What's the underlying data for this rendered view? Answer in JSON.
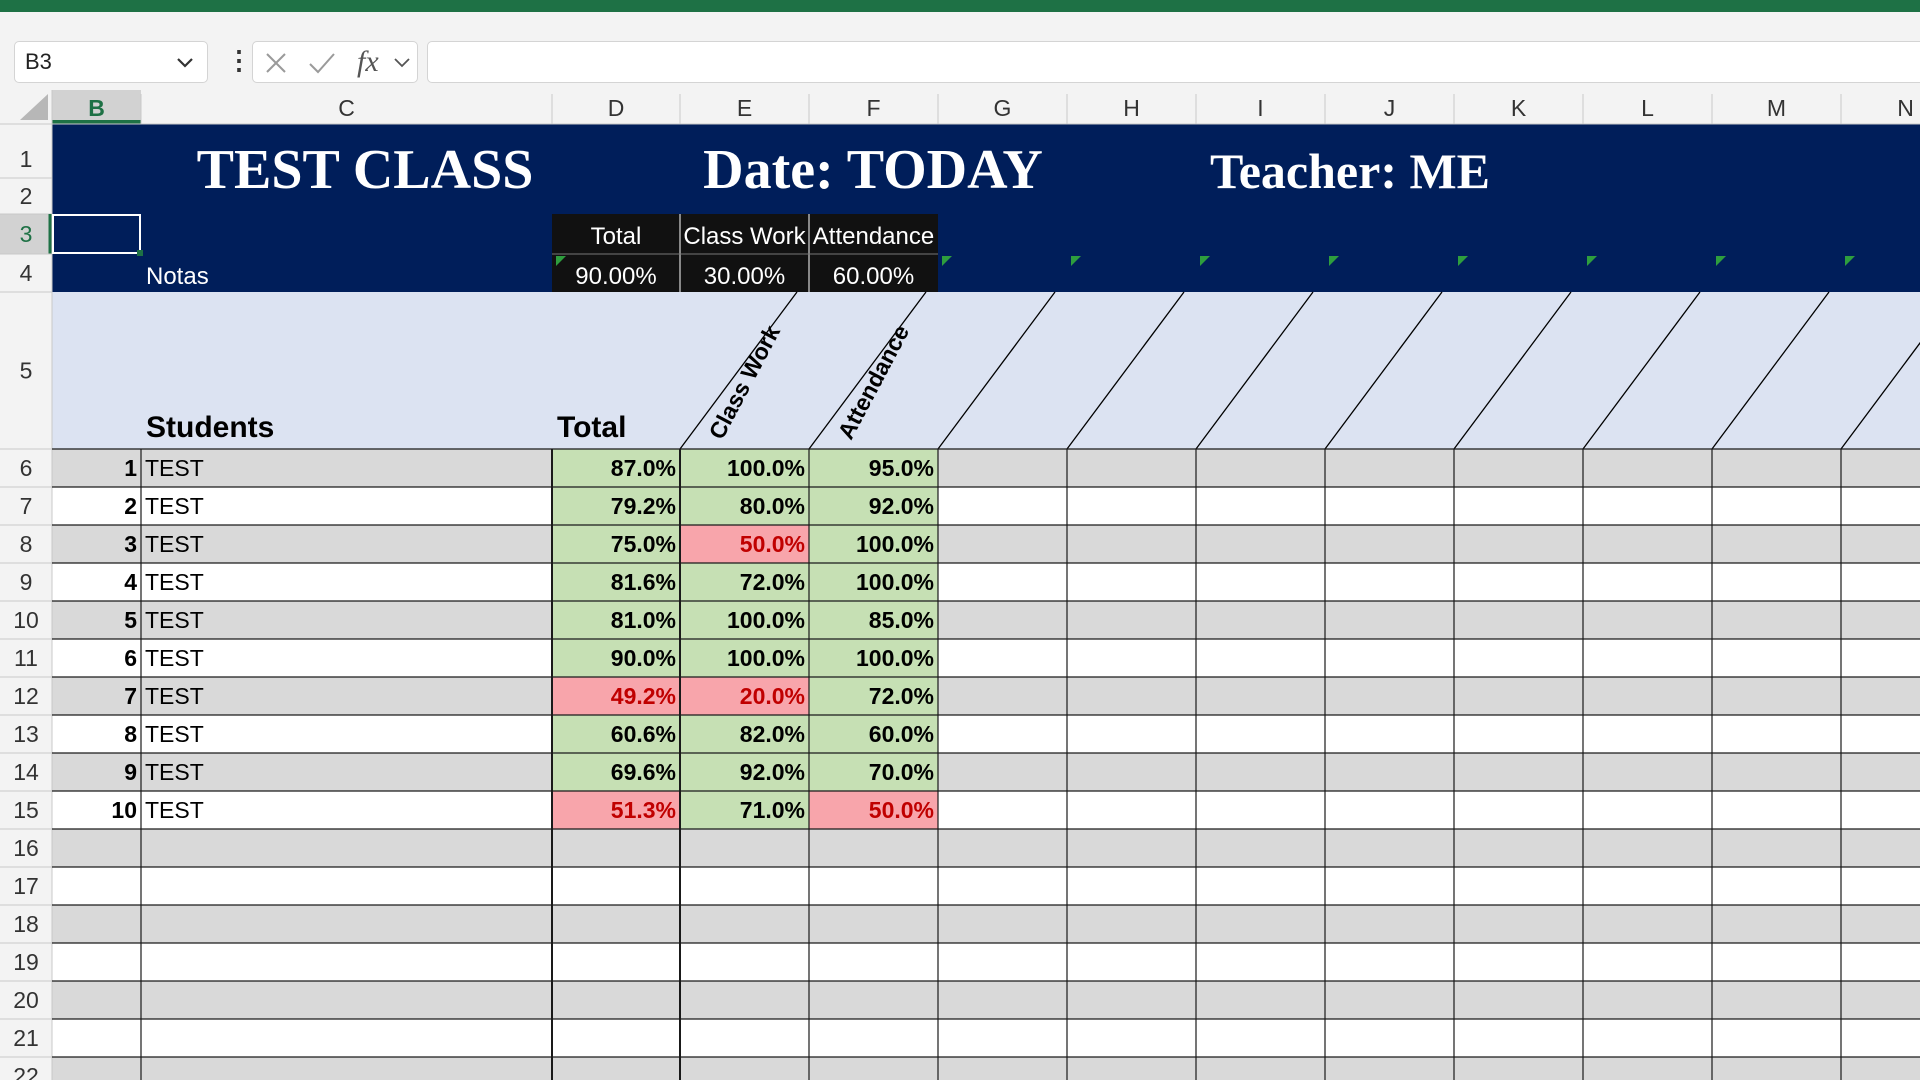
{
  "formula_bar": {
    "name_box": "B3",
    "fx": "fx",
    "formula": ""
  },
  "columns": [
    "B",
    "C",
    "D",
    "E",
    "F",
    "G",
    "H",
    "I",
    "J",
    "K",
    "L",
    "M",
    "N"
  ],
  "rows": [
    "1",
    "2",
    "3",
    "4",
    "5",
    "6",
    "7",
    "8",
    "9",
    "10",
    "11",
    "12",
    "13",
    "14",
    "15",
    "16",
    "17",
    "18",
    "19",
    "20",
    "21",
    "22"
  ],
  "header": {
    "title": "TEST CLASS",
    "date": "Date: TODAY",
    "teacher": "Teacher: ME"
  },
  "weights": {
    "labels": [
      "Total",
      "Class Work",
      "Attendance"
    ],
    "values": [
      "90.00%",
      "30.00%",
      "60.00%"
    ],
    "notas": "Notas"
  },
  "table_header": {
    "students": "Students",
    "total": "Total",
    "class_work": "Class Work",
    "attendance": "Attendance"
  },
  "students": [
    {
      "num": "1",
      "name": "TEST",
      "total": "87.0%",
      "class_work": "100.0%",
      "attendance": "95.0%",
      "fail": [
        false,
        false,
        false
      ]
    },
    {
      "num": "2",
      "name": "TEST",
      "total": "79.2%",
      "class_work": "80.0%",
      "attendance": "92.0%",
      "fail": [
        false,
        false,
        false
      ]
    },
    {
      "num": "3",
      "name": "TEST",
      "total": "75.0%",
      "class_work": "50.0%",
      "attendance": "100.0%",
      "fail": [
        false,
        true,
        false
      ]
    },
    {
      "num": "4",
      "name": "TEST",
      "total": "81.6%",
      "class_work": "72.0%",
      "attendance": "100.0%",
      "fail": [
        false,
        false,
        false
      ]
    },
    {
      "num": "5",
      "name": "TEST",
      "total": "81.0%",
      "class_work": "100.0%",
      "attendance": "85.0%",
      "fail": [
        false,
        false,
        false
      ]
    },
    {
      "num": "6",
      "name": "TEST",
      "total": "90.0%",
      "class_work": "100.0%",
      "attendance": "100.0%",
      "fail": [
        false,
        false,
        false
      ]
    },
    {
      "num": "7",
      "name": "TEST",
      "total": "49.2%",
      "class_work": "20.0%",
      "attendance": "72.0%",
      "fail": [
        true,
        true,
        false
      ]
    },
    {
      "num": "8",
      "name": "TEST",
      "total": "60.6%",
      "class_work": "82.0%",
      "attendance": "60.0%",
      "fail": [
        false,
        false,
        false
      ]
    },
    {
      "num": "9",
      "name": "TEST",
      "total": "69.6%",
      "class_work": "92.0%",
      "attendance": "70.0%",
      "fail": [
        false,
        false,
        false
      ]
    },
    {
      "num": "10",
      "name": "TEST",
      "total": "51.3%",
      "class_work": "71.0%",
      "attendance": "50.0%",
      "fail": [
        true,
        false,
        true
      ]
    }
  ],
  "colors": {
    "excel_green": "#1e7145",
    "header_navy": "#001e5a",
    "band_light": "#dce3f2",
    "pass_green": "#c6e0b4",
    "fail_red_bg": "#f8a5ab",
    "fail_red_text": "#c00000",
    "stripe_gray": "#d9d9d9"
  },
  "icons": [
    "chevron-down-icon",
    "more-options-icon",
    "cancel-icon",
    "enter-icon",
    "function-icon"
  ]
}
